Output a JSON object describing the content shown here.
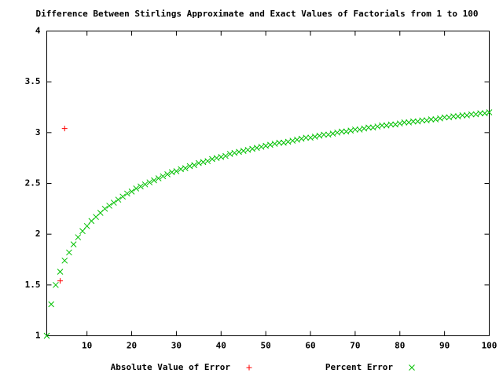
{
  "chart_data": {
    "type": "scatter",
    "title": "Difference Between Stirlings Approximate and Exact Values of Factorials from 1 to 100",
    "xlim": [
      1,
      100
    ],
    "ylim": [
      1,
      4
    ],
    "xticks": [
      10,
      20,
      30,
      40,
      50,
      60,
      70,
      80,
      90,
      100
    ],
    "yticks": [
      1,
      1.5,
      2,
      2.5,
      3,
      3.5,
      4
    ],
    "grid": false,
    "legend": "bottom",
    "series": [
      {
        "name": "Absolute Value of Error",
        "color": "#ff0000",
        "marker": "plus",
        "x": [
          4,
          5
        ],
        "values": [
          1.54,
          3.04
        ]
      },
      {
        "name": "Percent Error",
        "color": "#00c000",
        "marker": "cross",
        "x": [
          1,
          2,
          3,
          4,
          5,
          6,
          7,
          8,
          9,
          10,
          11,
          12,
          13,
          14,
          15,
          16,
          17,
          18,
          19,
          20,
          21,
          22,
          23,
          24,
          25,
          26,
          27,
          28,
          29,
          30,
          31,
          32,
          33,
          34,
          35,
          36,
          37,
          38,
          39,
          40,
          41,
          42,
          43,
          44,
          45,
          46,
          47,
          48,
          49,
          50,
          51,
          52,
          53,
          54,
          55,
          56,
          57,
          58,
          59,
          60,
          61,
          62,
          63,
          64,
          65,
          66,
          67,
          68,
          69,
          70,
          71,
          72,
          73,
          74,
          75,
          76,
          77,
          78,
          79,
          80,
          81,
          82,
          83,
          84,
          85,
          86,
          87,
          88,
          89,
          90,
          91,
          92,
          93,
          94,
          95,
          96,
          97,
          98,
          99,
          100
        ],
        "values": [
          1.0,
          1.31,
          1.5,
          1.63,
          1.74,
          1.82,
          1.9,
          1.97,
          2.03,
          2.08,
          2.13,
          2.17,
          2.21,
          2.25,
          2.28,
          2.31,
          2.34,
          2.37,
          2.4,
          2.42,
          2.45,
          2.47,
          2.49,
          2.51,
          2.53,
          2.55,
          2.57,
          2.59,
          2.61,
          2.62,
          2.64,
          2.65,
          2.67,
          2.68,
          2.7,
          2.71,
          2.72,
          2.74,
          2.75,
          2.76,
          2.77,
          2.79,
          2.8,
          2.81,
          2.82,
          2.83,
          2.84,
          2.85,
          2.86,
          2.87,
          2.88,
          2.89,
          2.9,
          2.9,
          2.91,
          2.92,
          2.93,
          2.94,
          2.95,
          2.95,
          2.96,
          2.97,
          2.98,
          2.98,
          2.99,
          3.0,
          3.01,
          3.01,
          3.02,
          3.03,
          3.03,
          3.04,
          3.05,
          3.05,
          3.06,
          3.07,
          3.07,
          3.08,
          3.08,
          3.09,
          3.1,
          3.1,
          3.11,
          3.11,
          3.12,
          3.12,
          3.13,
          3.13,
          3.14,
          3.15,
          3.15,
          3.16,
          3.16,
          3.17,
          3.17,
          3.18,
          3.18,
          3.19,
          3.19,
          3.2
        ]
      }
    ]
  }
}
